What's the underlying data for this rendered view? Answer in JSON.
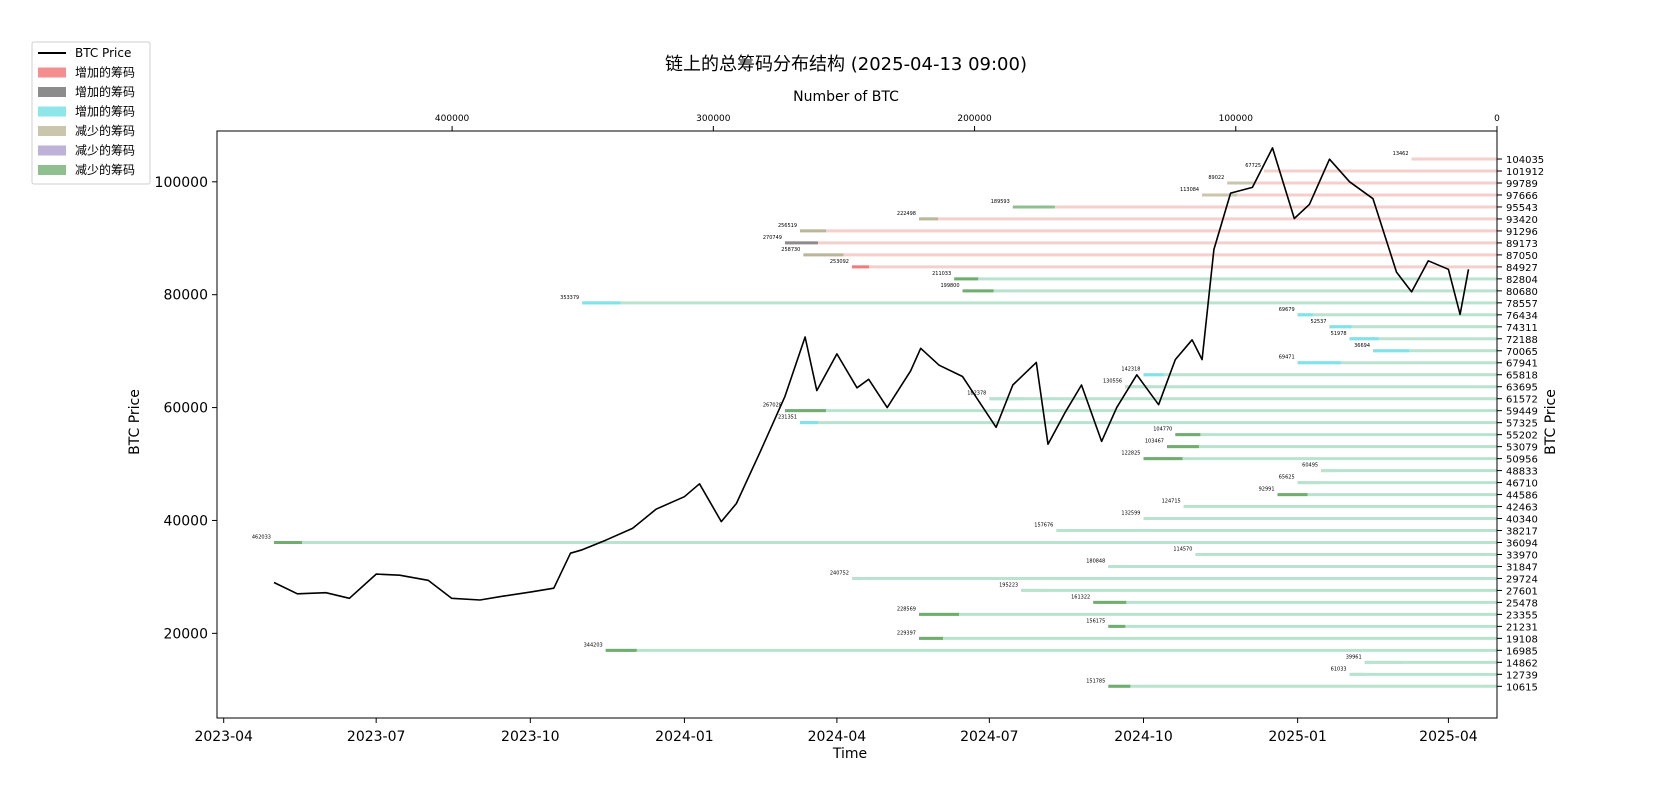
{
  "chart_data": {
    "type": "line",
    "title": "链上的总筹码分布结构 (2025-04-13 09:00)",
    "xlabel": "Time",
    "ylabel": "BTC Price",
    "ylabel_right": "BTC Price",
    "top_xlabel": "Number of BTC",
    "x_ticks": [
      "2023-04",
      "2023-07",
      "2023-10",
      "2024-01",
      "2024-04",
      "2024-07",
      "2024-10",
      "2025-01",
      "2025-04"
    ],
    "x_range": [
      "2023-03-28",
      "2025-04-30"
    ],
    "y_ticks": [
      "20000",
      "40000",
      "60000",
      "80000",
      "100000"
    ],
    "ylim": [
      5000,
      109000
    ],
    "top_x_ticks": [
      "400000",
      "300000",
      "200000",
      "100000",
      "0"
    ],
    "top_x_range": [
      490000,
      0
    ],
    "right_ticks": [
      "104035",
      "101912",
      "99789",
      "97666",
      "95543",
      "93420",
      "91296",
      "89173",
      "87050",
      "84927",
      "82804",
      "80680",
      "78557",
      "76434",
      "74311",
      "72188",
      "70065",
      "67941",
      "65818",
      "63695",
      "61572",
      "59449",
      "57325",
      "55202",
      "53079",
      "50956",
      "48833",
      "46710",
      "44586",
      "42463",
      "40340",
      "38217",
      "36094",
      "33970",
      "31847",
      "29724",
      "27601",
      "25478",
      "23355",
      "21231",
      "19108",
      "16985",
      "14862",
      "12739",
      "10615"
    ],
    "grid": false,
    "legend_position": "top-left",
    "legend": [
      {
        "label": "BTC Price",
        "kind": "line",
        "color": "#000000"
      },
      {
        "label": "增加的筹码",
        "kind": "patch",
        "color": "#f58e8e"
      },
      {
        "label": "增加的筹码",
        "kind": "patch",
        "color": "#8c8c8c"
      },
      {
        "label": "增加的筹码",
        "kind": "patch",
        "color": "#8ee6ea"
      },
      {
        "label": "减少的筹码",
        "kind": "patch",
        "color": "#c9c6ad"
      },
      {
        "label": "减少的筹码",
        "kind": "patch",
        "color": "#bfb2d9"
      },
      {
        "label": "减少的筹码",
        "kind": "patch",
        "color": "#8fbf8f"
      }
    ],
    "colors": {
      "above_price_band": "#f4cfcc",
      "below_price_band": "#b9e2cf",
      "increase_red": "#f07c7c",
      "increase_cyan": "#7fe3ea",
      "decrease_tan": "#b9b79a",
      "decrease_green": "#6fae6f",
      "price_line": "#000000"
    },
    "price_series": {
      "name": "BTC Price",
      "x": [
        "2023-05-01",
        "2023-05-15",
        "2023-06-01",
        "2023-06-15",
        "2023-07-01",
        "2023-07-15",
        "2023-08-01",
        "2023-08-15",
        "2023-09-01",
        "2023-09-15",
        "2023-10-01",
        "2023-10-15",
        "2023-10-25",
        "2023-11-01",
        "2023-11-15",
        "2023-12-01",
        "2023-12-15",
        "2024-01-01",
        "2024-01-10",
        "2024-01-23",
        "2024-02-01",
        "2024-02-15",
        "2024-03-01",
        "2024-03-13",
        "2024-03-20",
        "2024-04-01",
        "2024-04-13",
        "2024-04-20",
        "2024-05-01",
        "2024-05-15",
        "2024-05-21",
        "2024-06-01",
        "2024-06-15",
        "2024-07-05",
        "2024-07-15",
        "2024-07-29",
        "2024-08-05",
        "2024-08-15",
        "2024-08-25",
        "2024-09-06",
        "2024-09-15",
        "2024-09-27",
        "2024-10-10",
        "2024-10-20",
        "2024-10-30",
        "2024-11-05",
        "2024-11-12",
        "2024-11-22",
        "2024-12-05",
        "2024-12-17",
        "2024-12-30",
        "2025-01-08",
        "2025-01-20",
        "2025-02-01",
        "2025-02-15",
        "2025-03-01",
        "2025-03-10",
        "2025-03-20",
        "2025-04-01",
        "2025-04-08",
        "2025-04-13"
      ],
      "y": [
        29000,
        27000,
        27200,
        26200,
        30500,
        30300,
        29400,
        26200,
        25900,
        26600,
        27300,
        28000,
        34200,
        34800,
        36500,
        38600,
        42000,
        44200,
        46500,
        39800,
        43000,
        52000,
        62000,
        72500,
        63000,
        69500,
        63500,
        65000,
        60000,
        66500,
        70500,
        67500,
        65500,
        56500,
        64000,
        68000,
        53500,
        59000,
        64000,
        54000,
        60000,
        65800,
        60500,
        68500,
        72000,
        68500,
        88000,
        98000,
        99000,
        106000,
        93500,
        96000,
        104000,
        100000,
        97000,
        84000,
        80500,
        86000,
        84500,
        76500,
        84500
      ]
    },
    "chip_bands": [
      {
        "level": 104035,
        "start": "2025-03-10",
        "start_btc": 13462,
        "label": "13462",
        "seg": "#f4cfcc"
      },
      {
        "level": 101912,
        "start": "2024-12-12",
        "start_btc": 67725,
        "label": "67725",
        "seg": "#f4cfcc"
      },
      {
        "level": 99789,
        "start": "2024-11-20",
        "start_btc": 89022,
        "label": "89022",
        "seg": "#c9c6ad"
      },
      {
        "level": 97666,
        "start": "2024-11-05",
        "start_btc": 113084,
        "label": "113084",
        "seg": "#c9c6ad"
      },
      {
        "level": 95543,
        "start": "2024-07-15",
        "start_btc": 189593,
        "label": "189593",
        "seg": "#8fbf8f"
      },
      {
        "level": 93420,
        "start": "2024-05-20",
        "start_btc": 222498,
        "label": "222498",
        "seg": "#b9b79a"
      },
      {
        "level": 91296,
        "start": "2024-03-10",
        "start_btc": 256519,
        "label": "256519",
        "seg": "#b9b79a"
      },
      {
        "level": 89173,
        "start": "2024-03-01",
        "start_btc": 270749,
        "label": "270749",
        "seg": "#8c8c8c"
      },
      {
        "level": 87050,
        "start": "2024-03-12",
        "start_btc": 258730,
        "label": "258730",
        "seg": "#b9b79a"
      },
      {
        "level": 84927,
        "start": "2024-04-10",
        "start_btc": 253092,
        "label": "253092",
        "seg": "#f07c7c"
      },
      {
        "level": 82804,
        "start": "2024-06-10",
        "start_btc": 211033,
        "label": "211033",
        "seg": "#6fae6f"
      },
      {
        "level": 80680,
        "start": "2024-06-15",
        "start_btc": 199800,
        "label": "199800",
        "seg": "#6fae6f"
      },
      {
        "level": 78557,
        "start": "2023-11-01",
        "start_btc": 353379,
        "label": "353379",
        "seg": "#7fe3ea"
      },
      {
        "level": 76434,
        "start": "2025-01-01",
        "start_btc": 69679,
        "label": "69679",
        "seg": "#7fe3ea"
      },
      {
        "level": 74311,
        "start": "2025-01-20",
        "start_btc": 52537,
        "label": "52537",
        "seg": "#7fe3ea"
      },
      {
        "level": 72188,
        "start": "2025-02-01",
        "start_btc": 51978,
        "label": "51978",
        "seg": "#7fe3ea"
      },
      {
        "level": 70065,
        "start": "2025-02-15",
        "start_btc": 36694,
        "label": "36694",
        "seg": "#7fe3ea"
      },
      {
        "level": 67941,
        "start": "2025-01-01",
        "start_btc": 69471,
        "label": "69471",
        "seg": "#7fe3ea"
      },
      {
        "level": 65818,
        "start": "2024-10-01",
        "start_btc": 142318,
        "label": "142318",
        "seg": "#7fe3ea"
      },
      {
        "level": 63695,
        "start": "2024-09-20",
        "start_btc": 130556,
        "label": "130556",
        "seg": "#b9e2cf"
      },
      {
        "level": 61572,
        "start": "2024-07-01",
        "start_btc": 182378,
        "label": "182378",
        "seg": "#b9e2cf"
      },
      {
        "level": 59449,
        "start": "2024-03-01",
        "start_btc": 267028,
        "label": "267028",
        "seg": "#6fae6f"
      },
      {
        "level": 57325,
        "start": "2024-03-10",
        "start_btc": 231351,
        "label": "231351",
        "seg": "#7fe3ea"
      },
      {
        "level": 55202,
        "start": "2024-10-20",
        "start_btc": 104770,
        "label": "104770",
        "seg": "#6fae6f"
      },
      {
        "level": 53079,
        "start": "2024-10-15",
        "start_btc": 103467,
        "label": "103467",
        "seg": "#6fae6f"
      },
      {
        "level": 50956,
        "start": "2024-10-01",
        "start_btc": 122825,
        "label": "122825",
        "seg": "#6fae6f"
      },
      {
        "level": 48833,
        "start": "2025-01-15",
        "start_btc": 60495,
        "label": "60495",
        "seg": "#b9e2cf"
      },
      {
        "level": 46710,
        "start": "2025-01-01",
        "start_btc": 65625,
        "label": "65625",
        "seg": "#b9e2cf"
      },
      {
        "level": 44586,
        "start": "2024-12-20",
        "start_btc": 92991,
        "label": "92991",
        "seg": "#6fae6f"
      },
      {
        "level": 42463,
        "start": "2024-10-25",
        "start_btc": 124715,
        "label": "124715",
        "seg": "#b9e2cf"
      },
      {
        "level": 40340,
        "start": "2024-10-01",
        "start_btc": 132599,
        "label": "132599",
        "seg": "#b9e2cf"
      },
      {
        "level": 38217,
        "start": "2024-08-10",
        "start_btc": 157676,
        "label": "157676",
        "seg": "#b9e2cf"
      },
      {
        "level": 36094,
        "start": "2023-05-01",
        "start_btc": 462033,
        "label": "462033",
        "seg": "#6fae6f"
      },
      {
        "level": 33970,
        "start": "2024-11-01",
        "start_btc": 114570,
        "label": "114570",
        "seg": "#b9e2cf"
      },
      {
        "level": 31847,
        "start": "2024-09-10",
        "start_btc": 180848,
        "label": "180848",
        "seg": "#b9e2cf"
      },
      {
        "level": 29724,
        "start": "2024-04-10",
        "start_btc": 240752,
        "label": "240752",
        "seg": "#b9e2cf"
      },
      {
        "level": 27601,
        "start": "2024-07-20",
        "start_btc": 195223,
        "label": "195223",
        "seg": "#b9e2cf"
      },
      {
        "level": 25478,
        "start": "2024-09-01",
        "start_btc": 161322,
        "label": "161322",
        "seg": "#6fae6f"
      },
      {
        "level": 23355,
        "start": "2024-05-20",
        "start_btc": 228569,
        "label": "228569",
        "seg": "#6fae6f"
      },
      {
        "level": 21231,
        "start": "2024-09-10",
        "start_btc": 156175,
        "label": "156175",
        "seg": "#6fae6f"
      },
      {
        "level": 19108,
        "start": "2024-05-20",
        "start_btc": 229397,
        "label": "229397",
        "seg": "#6fae6f"
      },
      {
        "level": 16985,
        "start": "2023-11-15",
        "start_btc": 344203,
        "label": "344203",
        "seg": "#6fae6f"
      },
      {
        "level": 14862,
        "start": "2025-02-10",
        "start_btc": 39961,
        "label": "39961",
        "seg": "#b9e2cf"
      },
      {
        "level": 12739,
        "start": "2025-02-01",
        "start_btc": 61033,
        "label": "61033",
        "seg": "#b9e2cf"
      },
      {
        "level": 10615,
        "start": "2024-09-10",
        "start_btc": 151785,
        "label": "151785",
        "seg": "#6fae6f"
      }
    ]
  }
}
